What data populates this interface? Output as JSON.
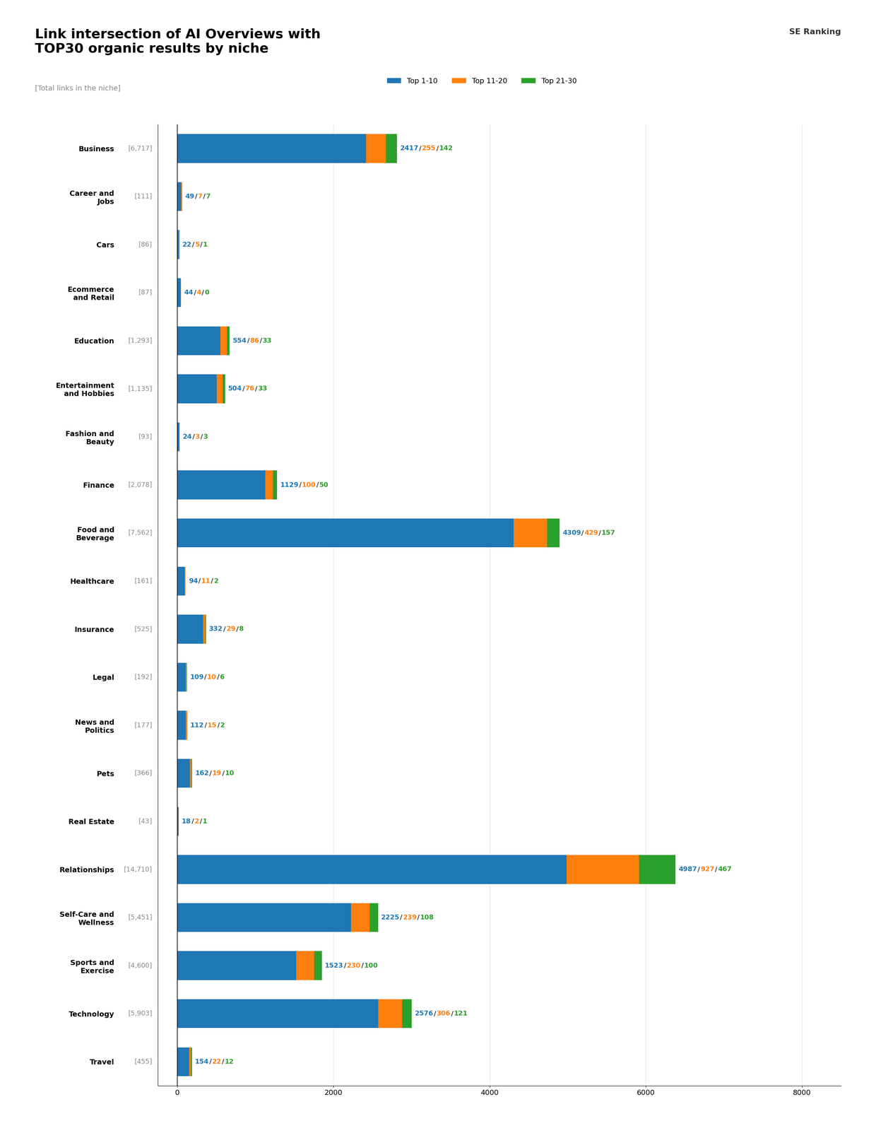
{
  "chart_data": {
    "type": "bar",
    "orientation": "horizontal",
    "stacked": true,
    "title": "Link intersection of AI Overviews with\nTOP30 organic results by niche",
    "categories": [
      "Business",
      "Career and\nJobs",
      "Cars",
      "Ecommerce\nand Retail",
      "Education",
      "Entertainment\nand Hobbies",
      "Fashion and\nBeauty",
      "Finance",
      "Food and\nBeverage",
      "Healthcare",
      "Insurance",
      "Legal",
      "News and\nPolitics",
      "Pets",
      "Real Estate",
      "Relationships",
      "Self-Care and\nWellness",
      "Sports and\nExercise",
      "Technology",
      "Travel"
    ],
    "series": [
      {
        "name": "Top 1-10",
        "values": [
          2417,
          49,
          22,
          44,
          554,
          504,
          24,
          1129,
          4309,
          94,
          332,
          109,
          112,
          162,
          18,
          4987,
          2225,
          1523,
          2576,
          154
        ]
      },
      {
        "name": "Top 11-20",
        "values": [
          255,
          7,
          5,
          4,
          86,
          76,
          3,
          100,
          429,
          11,
          29,
          10,
          15,
          19,
          2,
          927,
          239,
          230,
          306,
          22
        ]
      },
      {
        "name": "Top 21-30",
        "values": [
          142,
          7,
          1,
          0,
          33,
          33,
          3,
          50,
          157,
          2,
          8,
          6,
          2,
          10,
          1,
          467,
          108,
          100,
          121,
          12
        ]
      }
    ],
    "total_labels": [
      "[6,717]",
      "[111]",
      "[86]",
      "[87]",
      "[1,293]",
      "[1,135]",
      "[93]",
      "[2,078]",
      "[7,562]",
      "[161]",
      "[525]",
      "[192]",
      "[177]",
      "[366]",
      "[43]",
      "[14,710]",
      "[5,451]",
      "[4,600]",
      "[5,903]",
      "[455]"
    ],
    "legend_note": "[Total links in the niche]",
    "data_labels": true,
    "label_separator": "/",
    "annotations": [
      "SE Ranking"
    ],
    "xlim": [
      -250,
      8500
    ],
    "xticks": [
      0,
      2000,
      4000,
      6000,
      8000
    ],
    "grid": true,
    "legend": "upper center"
  }
}
